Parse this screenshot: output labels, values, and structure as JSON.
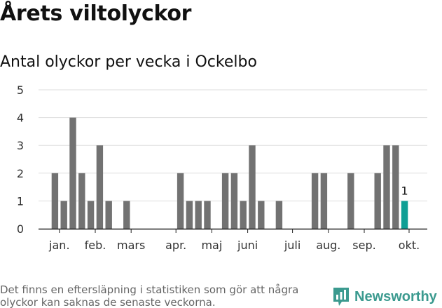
{
  "title": "Årets viltolyckor",
  "subtitle": "Antal olyckor per vecka i Ockelbo",
  "footnote": "Det finns en eftersläpning i statistiken som gör att några olyckor kan saknas de senaste veckorna.",
  "brand": {
    "name": "Newsworthy",
    "logo_icon": "bar-chart-bubble-icon",
    "color": "#3b9a8f"
  },
  "colors": {
    "bar": "#727272",
    "highlight": "#0f9f95",
    "grid": "#dddddd",
    "axis": "#222222"
  },
  "chart_data": {
    "type": "bar",
    "title": "Antal olyckor per vecka i Ockelbo",
    "xlabel": "",
    "ylabel": "",
    "ylim": [
      0,
      5
    ],
    "yticks": [
      0,
      1,
      2,
      3,
      4,
      5
    ],
    "grid": true,
    "x_unit": "week",
    "weeks": [
      1,
      2,
      3,
      4,
      5,
      6,
      7,
      8,
      9,
      10,
      11,
      12,
      13,
      14,
      15,
      16,
      17,
      18,
      19,
      20,
      21,
      22,
      23,
      24,
      25,
      26,
      27,
      28,
      29,
      30,
      31,
      32,
      33,
      34,
      35,
      36,
      37,
      38,
      39,
      40
    ],
    "values": [
      2,
      1,
      4,
      2,
      1,
      3,
      1,
      0,
      1,
      0,
      0,
      0,
      0,
      0,
      2,
      1,
      1,
      1,
      0,
      2,
      2,
      1,
      3,
      1,
      0,
      1,
      0,
      0,
      0,
      2,
      2,
      0,
      0,
      2,
      0,
      0,
      2,
      3,
      3,
      1
    ],
    "month_ticks": [
      {
        "label": "jan.",
        "week": 1.5
      },
      {
        "label": "feb.",
        "week": 5.5
      },
      {
        "label": "mars",
        "week": 9.5
      },
      {
        "label": "apr.",
        "week": 14.5
      },
      {
        "label": "maj",
        "week": 18.5
      },
      {
        "label": "juni",
        "week": 22.5
      },
      {
        "label": "juli",
        "week": 27.5
      },
      {
        "label": "aug.",
        "week": 31.5
      },
      {
        "label": "sep.",
        "week": 35.5
      },
      {
        "label": "okt.",
        "week": 40.5
      }
    ],
    "highlight_week": 40,
    "annotations": [
      {
        "week": 40,
        "text": "1"
      }
    ]
  }
}
